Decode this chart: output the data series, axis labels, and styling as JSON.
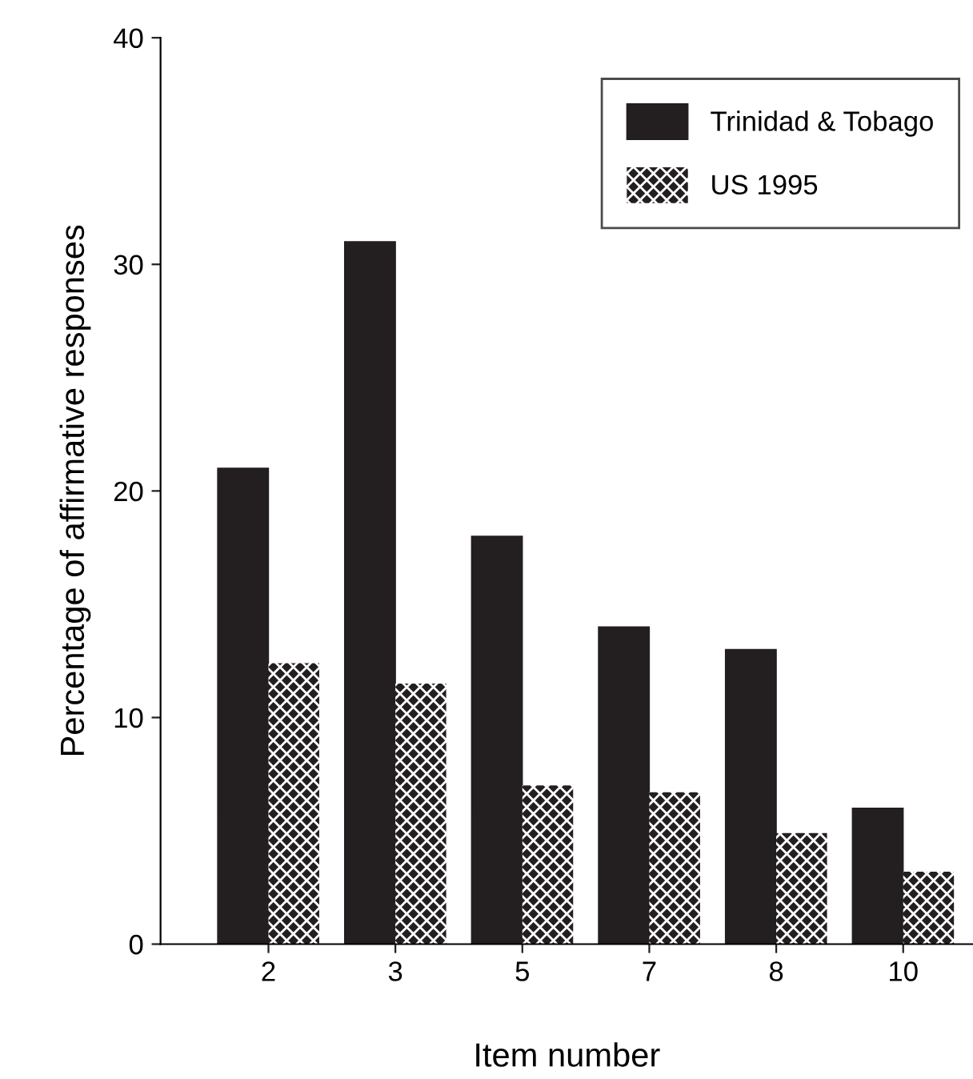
{
  "chart_data": {
    "type": "bar",
    "xlabel": "Item number",
    "ylabel": "Percentage of affirmative responses",
    "categories": [
      "2",
      "3",
      "5",
      "7",
      "8",
      "10"
    ],
    "series": [
      {
        "name": "Trinidad & Tobago",
        "color": "#231f20",
        "values": [
          21,
          31,
          18,
          14,
          13,
          6
        ]
      },
      {
        "name": "US 1995",
        "color": "#231f20",
        "values": [
          12.4,
          11.5,
          7.0,
          6.7,
          4.9,
          3.2
        ]
      }
    ],
    "ylim": [
      0,
      40
    ],
    "yticks": [
      0,
      10,
      20,
      30,
      40
    ],
    "grid": false,
    "legend": "top right"
  }
}
